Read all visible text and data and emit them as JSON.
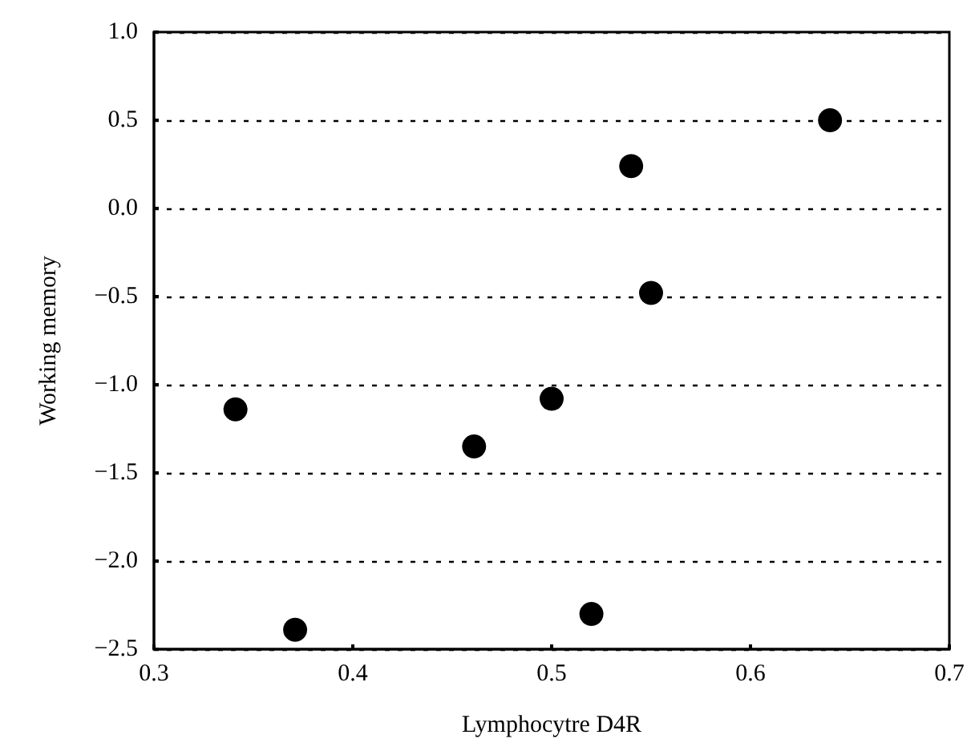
{
  "chart_data": {
    "type": "scatter",
    "xlabel": "Lymphocytre D4R",
    "ylabel": "Working memory",
    "x": [
      0.341,
      0.371,
      0.461,
      0.5,
      0.52,
      0.54,
      0.55,
      0.64
    ],
    "values": [
      -1.14,
      -2.39,
      -1.35,
      -1.08,
      -2.3,
      0.24,
      -0.48,
      0.5
    ],
    "color": "#000000",
    "marker": "circle",
    "xlim": [
      0.3,
      0.7
    ],
    "xticks": [
      0.3,
      0.4,
      0.5,
      0.6,
      0.7
    ],
    "ylim": [
      -2.5,
      1.0
    ],
    "yticks": [
      {
        "value": -2.5,
        "label": "−2.5"
      },
      {
        "value": -2,
        "label": "−2.0"
      },
      {
        "value": -1.5,
        "label": "−1.5"
      },
      {
        "value": -1,
        "label": "−1.0"
      },
      {
        "value": -0.5,
        "label": "−0.5"
      },
      {
        "value": 0,
        "label": "0.0"
      },
      {
        "value": 0.5,
        "label": "0.5"
      },
      {
        "value": 1,
        "label": "1.0"
      }
    ],
    "grid": "y"
  }
}
